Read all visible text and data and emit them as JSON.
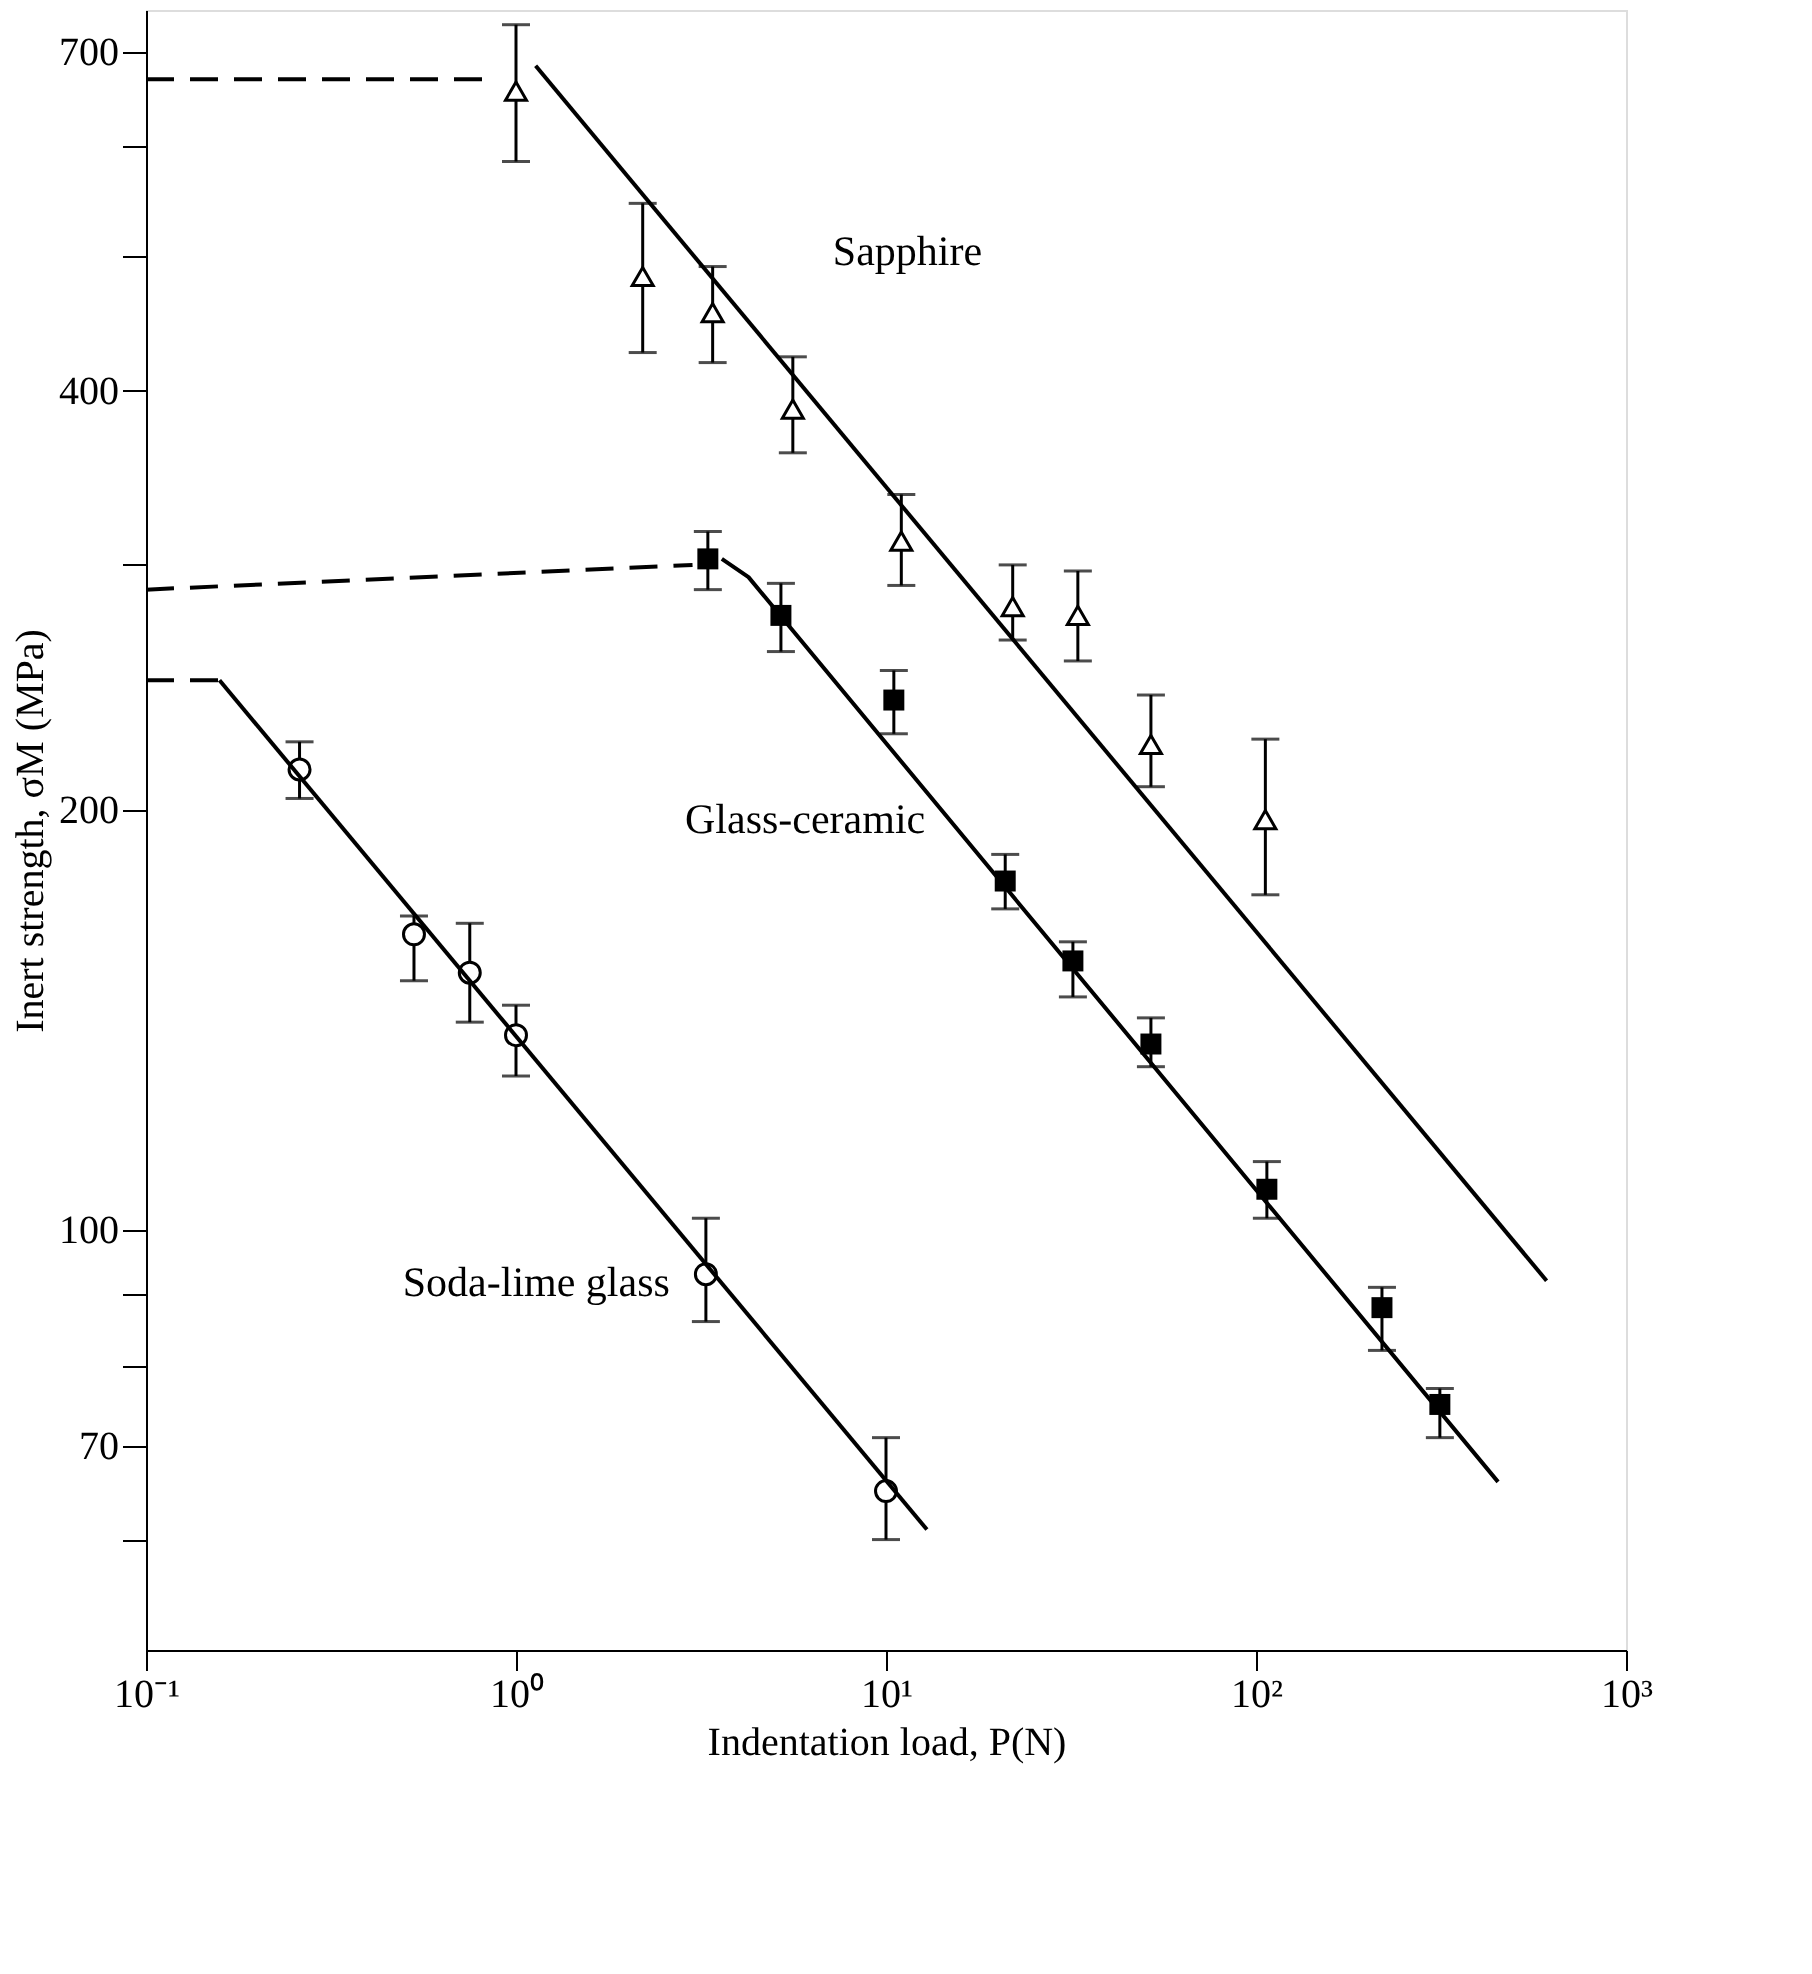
{
  "chart_data": {
    "type": "scatter",
    "xlabel": "Indentation load, P(N)",
    "ylabel": "Inert strength, σM (MPa)",
    "log": "xy",
    "grid": false,
    "xlim": [
      0.1,
      1000
    ],
    "xticks": [
      {
        "value": 0.1,
        "label": "10⁻¹"
      },
      {
        "value": 1,
        "label": "10⁰"
      },
      {
        "value": 10,
        "label": "10¹"
      },
      {
        "value": 100,
        "label": "10²"
      },
      {
        "value": 1000,
        "label": "10³"
      }
    ],
    "ylim": [
      50,
      750
    ],
    "yticks": [
      {
        "value": 60,
        "label": null
      },
      70,
      {
        "value": 80,
        "label": null
      },
      {
        "value": 90,
        "label": null
      },
      100,
      200,
      {
        "value": 300,
        "label": null
      },
      400,
      {
        "value": 500,
        "label": null
      },
      {
        "value": 600,
        "label": null
      },
      700
    ],
    "series": [
      {
        "name": "Sapphire",
        "type": "scatter",
        "marker": "triangle",
        "color": "#000000",
        "x": [
          1,
          2.2,
          3.4,
          5.6,
          11,
          22,
          33,
          52,
          106
        ],
        "values": [
          656,
          483,
          455,
          388,
          312,
          280,
          276,
          223,
          197
        ],
        "errors": [
          [
            584,
            732
          ],
          [
            426,
            545
          ],
          [
            419,
            491
          ],
          [
            361,
            423
          ],
          [
            290,
            337
          ],
          [
            265,
            300
          ],
          [
            256,
            297
          ],
          [
            208,
            242
          ],
          [
            174,
            225
          ]
        ]
      },
      {
        "name": "Glass-ceramic",
        "type": "scatter",
        "marker": "square",
        "color": "#000000",
        "x": [
          3.3,
          5.2,
          10.5,
          21,
          32,
          52,
          107,
          219,
          314
        ],
        "values": [
          303,
          276,
          240,
          178,
          156,
          136,
          107,
          88,
          75
        ],
        "errors": [
          [
            288,
            317
          ],
          [
            260,
            291
          ],
          [
            227,
            252
          ],
          [
            170,
            186
          ],
          [
            147,
            161
          ],
          [
            131,
            142
          ],
          [
            102,
            112
          ],
          [
            82,
            91
          ],
          [
            71,
            77
          ]
        ]
      },
      {
        "name": "Soda-lime glass",
        "type": "scatter",
        "marker": "circle",
        "color": "#000000",
        "x": [
          0.26,
          0.53,
          0.75,
          1,
          3.26,
          10
        ],
        "values": [
          214,
          163,
          153,
          138,
          93,
          65
        ],
        "errors": [
          [
            204,
            224
          ],
          [
            151,
            168
          ],
          [
            141,
            166
          ],
          [
            129,
            145
          ],
          [
            86,
            102
          ],
          [
            60,
            71
          ]
        ]
      },
      {
        "type": "line",
        "line_style": "dashed",
        "color": "#000000",
        "x": [
          0.1,
          0.85
        ],
        "values": [
          669,
          669
        ]
      },
      {
        "type": "line",
        "line_style": "solid",
        "color": "#000000",
        "x": [
          1.13,
          610
        ],
        "values": [
          684,
          92
        ]
      },
      {
        "type": "line",
        "line_style": "dashed",
        "color": "#000000",
        "x": [
          0.1,
          3.0
        ],
        "values": [
          288,
          300
        ]
      },
      {
        "type": "line",
        "line_style": "solid",
        "color": "#000000",
        "x": [
          3.6,
          4.25,
          451
        ],
        "values": [
          303,
          294,
          66
        ]
      },
      {
        "type": "line",
        "line_style": "dashed",
        "color": "#000000",
        "x": [
          0.1,
          0.158
        ],
        "values": [
          248,
          248
        ]
      },
      {
        "type": "line",
        "line_style": "solid",
        "color": "#000000",
        "x": [
          0.158,
          12.9
        ],
        "values": [
          248,
          61
        ]
      }
    ]
  }
}
